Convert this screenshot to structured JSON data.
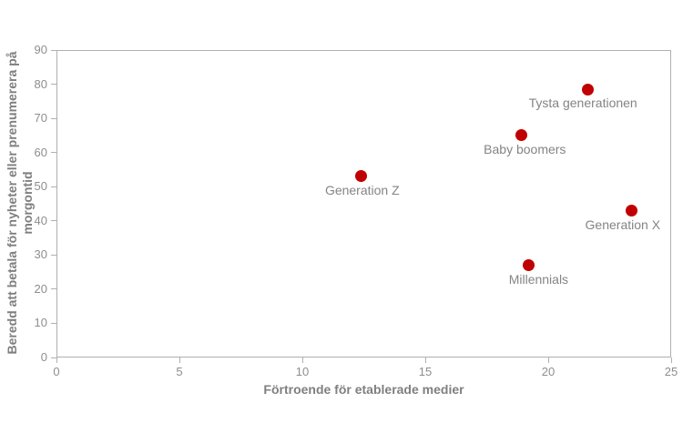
{
  "chart_data": {
    "type": "scatter",
    "xlabel": "Förtroende för etablerade medier",
    "ylabel": "Beredd att betala för nyheter eller prenumerera på\nmorgontid",
    "xlim": [
      0,
      25
    ],
    "ylim": [
      0,
      90
    ],
    "xticks": [
      0,
      5,
      10,
      15,
      20,
      25
    ],
    "yticks": [
      0,
      10,
      20,
      30,
      40,
      50,
      60,
      70,
      80,
      90
    ],
    "grid": false,
    "legend": false,
    "marker_color": "#c00000",
    "marker_size_px": 13,
    "axis_color": "#b0b0b0",
    "tick_label_color": "#8e8e8e",
    "axis_title_color": "#7f7f7f",
    "point_label_color": "#848484",
    "points": [
      {
        "name": "Tysta generationen",
        "x": 21.6,
        "y": 78.5,
        "label_dx": -5
      },
      {
        "name": "Baby boomers",
        "x": 18.9,
        "y": 65,
        "label_dx": 4
      },
      {
        "name": "Generation Z",
        "x": 12.4,
        "y": 53,
        "label_dx": 1
      },
      {
        "name": "Generation X",
        "x": 23.4,
        "y": 43,
        "label_dx": -10
      },
      {
        "name": "Millennials",
        "x": 19.2,
        "y": 27,
        "label_dx": 11
      }
    ]
  }
}
